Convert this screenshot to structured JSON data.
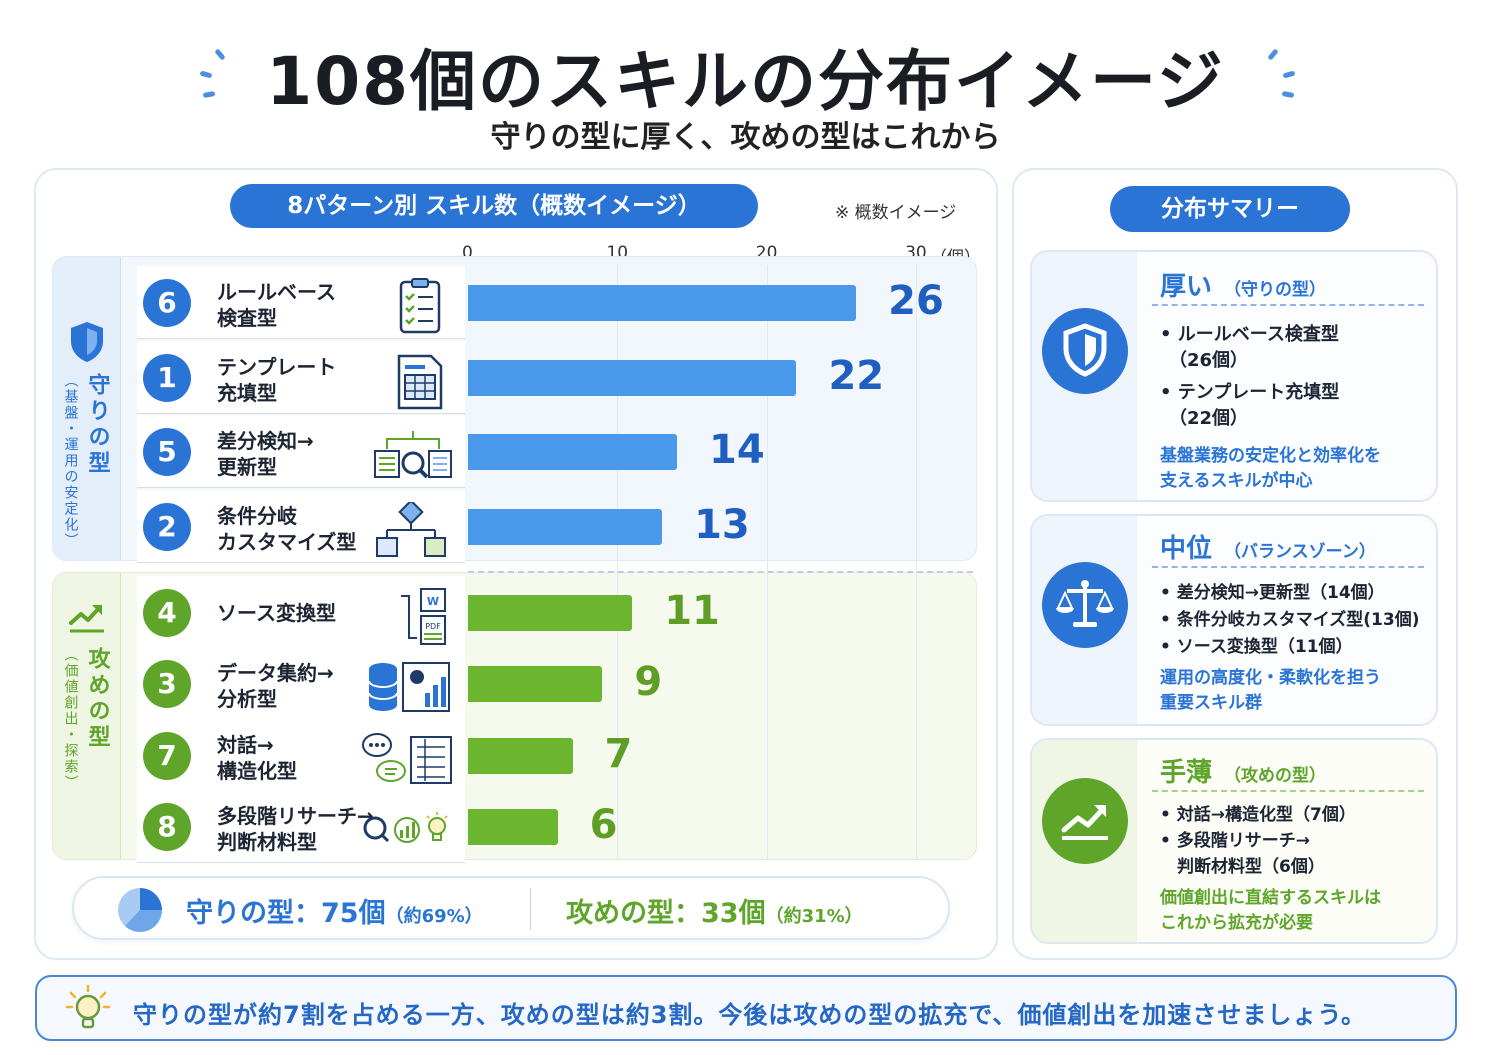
{
  "header": {
    "title": "108個のスキルの分布イメージ",
    "subtitle": "守りの型に厚く、攻めの型はこれから"
  },
  "chart_panel": {
    "heading": "8パターン別 スキル数（概数イメージ）",
    "note": "※ 概数イメージ",
    "unit": "（個）"
  },
  "groups": [
    {
      "name": "守りの型",
      "sub": "（基盤・運用の安定化）",
      "icon": "shield-icon",
      "color": "#2a74d6"
    },
    {
      "name": "攻めの型",
      "sub": "（価値創出・探索）",
      "icon": "growth-chart-icon",
      "color": "#5ea52a"
    }
  ],
  "chart_data": {
    "type": "bar",
    "orientation": "horizontal",
    "xlim": [
      0,
      30
    ],
    "xticks": [
      0,
      10,
      20,
      30
    ],
    "grid": true,
    "rows": [
      {
        "num": "6",
        "label": [
          "ルールベース",
          "検査型"
        ],
        "value": 26,
        "group": "守りの型",
        "icon": "checklist-clipboard-icon"
      },
      {
        "num": "1",
        "label": [
          "テンプレート",
          "充填型"
        ],
        "value": 22,
        "group": "守りの型",
        "icon": "template-form-icon"
      },
      {
        "num": "5",
        "label": [
          "差分検知→",
          "更新型"
        ],
        "value": 14,
        "group": "守りの型",
        "icon": "diff-search-icon"
      },
      {
        "num": "2",
        "label": [
          "条件分岐",
          "カスタマイズ型"
        ],
        "value": 13,
        "group": "守りの型",
        "icon": "branch-flow-icon"
      },
      {
        "num": "4",
        "label": [
          "ソース変換型"
        ],
        "value": 11,
        "group": "攻めの型",
        "icon": "file-convert-icon"
      },
      {
        "num": "3",
        "label": [
          "データ集約→",
          "分析型"
        ],
        "value": 9,
        "group": "攻めの型",
        "icon": "database-analytics-icon"
      },
      {
        "num": "7",
        "label": [
          "対話→",
          "構造化型"
        ],
        "value": 7,
        "group": "攻めの型",
        "icon": "chat-structure-icon"
      },
      {
        "num": "8",
        "label": [
          "多段階リサーチ→",
          "判断材料型"
        ],
        "value": 6,
        "group": "攻めの型",
        "icon": "research-insight-icon"
      }
    ]
  },
  "totals": {
    "defense_label": "守りの型：75個",
    "defense_pct": "（約69%）",
    "offense_label": "攻めの型：33個",
    "offense_pct": "（約31%）"
  },
  "summary": {
    "heading": "分布サマリー",
    "cards": [
      {
        "title": "厚い",
        "tag": "（守りの型）",
        "icon": "shield-icon",
        "items": [
          "• ルールベース検査型",
          "　（26個）",
          "• テンプレート充填型",
          "　（22個）"
        ],
        "desc": [
          "基盤業務の安定化と効率化を",
          "支えるスキルが中心"
        ]
      },
      {
        "title": "中位",
        "tag": "（バランスゾーン）",
        "icon": "balance-scale-icon",
        "items": [
          "• 差分検知→更新型（14個）",
          "• 条件分岐カスタマイズ型(13個)",
          "• ソース変換型（11個）"
        ],
        "desc": [
          "運用の高度化・柔軟化を担う",
          "重要スキル群"
        ]
      },
      {
        "title": "手薄",
        "tag": "（攻めの型）",
        "icon": "growth-chart-icon",
        "items": [
          "• 対話→構造化型（7個）",
          "• 多段階リサーチ→",
          "　判断材料型（6個）"
        ],
        "desc": [
          "価値創出に直結するスキルは",
          "これから拡充が必要"
        ]
      }
    ]
  },
  "footer": {
    "text": "守りの型が約7割を占める一方、攻めの型は約3割。今後は攻めの型の拡充で、価値創出を加速させましょう。",
    "icon": "lightbulb-icon"
  },
  "colors": {
    "blue": "#2a74d6",
    "bar_blue": "#4a98ea",
    "green": "#5ea52a",
    "bar_green": "#6cb62f",
    "value_blue": "#1f5fbf",
    "value_green": "#5f9e24"
  }
}
